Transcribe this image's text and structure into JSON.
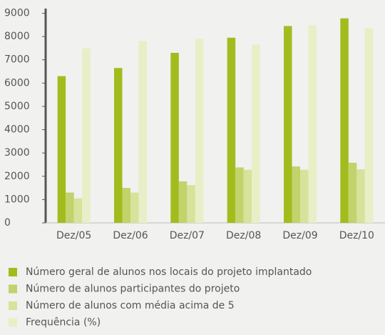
{
  "chart_data": {
    "type": "bar",
    "categories": [
      "Dez/05",
      "Dez/06",
      "Dez/07",
      "Dez/08",
      "Dez/09",
      "Dez/10"
    ],
    "series": [
      {
        "name": "Número geral de alunos nos locais do projeto implantado",
        "color": "#a2bc1e",
        "values": [
          6300,
          6650,
          7300,
          7950,
          8450,
          8780
        ]
      },
      {
        "name": "Número de alunos participantes do projeto",
        "color": "#c1d36a",
        "values": [
          1300,
          1500,
          1780,
          2380,
          2420,
          2580
        ]
      },
      {
        "name": "Número de alunos com média acima de 5",
        "color": "#d7e29a",
        "values": [
          1050,
          1300,
          1620,
          2280,
          2280,
          2300
        ]
      },
      {
        "name": "Frequência (%)",
        "color": "#e8efc6",
        "values": [
          7500,
          7800,
          7900,
          7650,
          8480,
          8350
        ]
      }
    ],
    "ylim": [
      0,
      9200
    ],
    "yticks": [
      0,
      1000,
      2000,
      3000,
      4000,
      5000,
      6000,
      7000,
      8000,
      9000
    ],
    "grid": false
  }
}
